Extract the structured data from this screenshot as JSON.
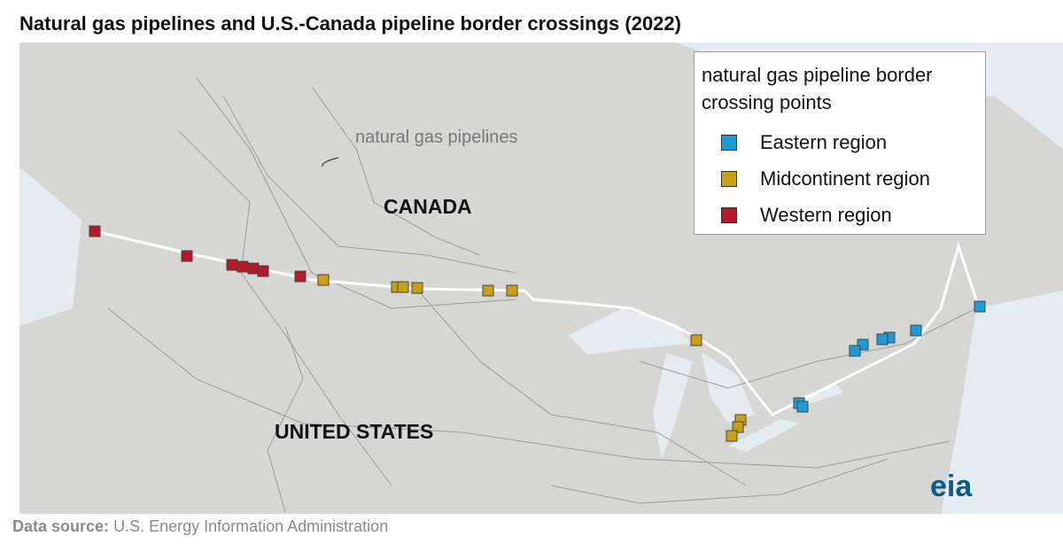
{
  "header": {
    "title": "Natural gas pipelines and U.S.-Canada pipeline border crossings (2022)"
  },
  "map": {
    "labels": {
      "pipelines": "natural gas pipelines",
      "canada": "CANADA",
      "united_states": "UNITED STATES"
    }
  },
  "legend": {
    "title": "natural gas pipeline border crossing points",
    "items": [
      {
        "name": "Eastern region",
        "color": "#1e9ad6"
      },
      {
        "name": "Midcontinent region",
        "color": "#c9a015"
      },
      {
        "name": "Western region",
        "color": "#b5182b"
      }
    ]
  },
  "footer": {
    "source_label": "Data source:",
    "source": "U.S. Energy Information Administration",
    "logo": "eia"
  }
}
